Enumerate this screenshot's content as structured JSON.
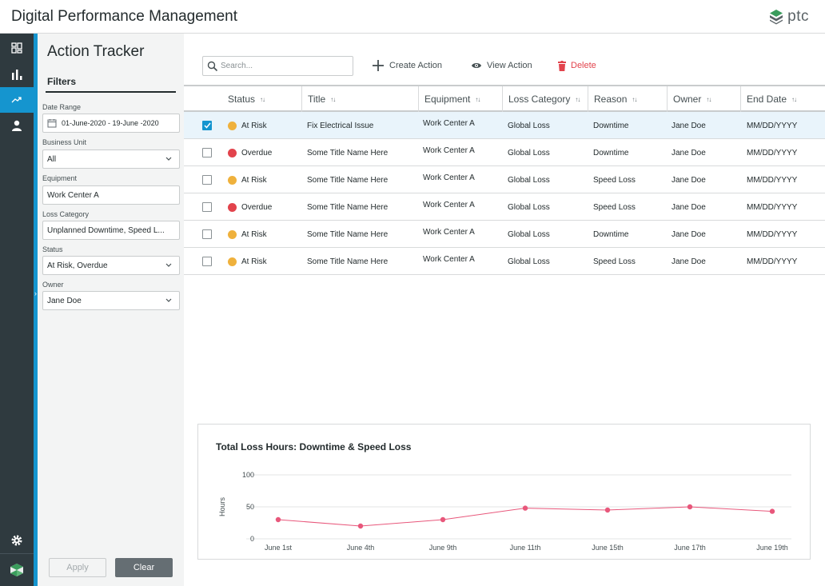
{
  "app": {
    "title": "Digital Performance Management",
    "logo_text": "ptc"
  },
  "nav": {
    "items": [
      {
        "name": "dashboard-icon",
        "active": false
      },
      {
        "name": "bar-chart-icon",
        "active": false
      },
      {
        "name": "trend-icon",
        "active": true
      },
      {
        "name": "person-icon",
        "active": false
      }
    ],
    "bottom": [
      "gear-icon",
      "cube-logo-icon"
    ]
  },
  "panel": {
    "title": "Action Tracker",
    "tab": "Filters",
    "filters": [
      {
        "label": "Date Range",
        "value": "01-June-2020 - 19-June -2020",
        "type": "date"
      },
      {
        "label": "Business Unit",
        "value": "All",
        "type": "select"
      },
      {
        "label": "Equipment",
        "value": "Work Center A",
        "type": "text"
      },
      {
        "label": "Loss Category",
        "value": "Unplanned Downtime, Speed L...",
        "type": "text"
      },
      {
        "label": "Status",
        "value": "At Risk, Overdue",
        "type": "select"
      },
      {
        "label": "Owner",
        "value": "Jane Doe",
        "type": "select"
      }
    ],
    "apply_label": "Apply",
    "clear_label": "Clear"
  },
  "toolbar": {
    "search_placeholder": "Search...",
    "create_label": "Create Action",
    "view_label": "View Action",
    "delete_label": "Delete"
  },
  "colors": {
    "accent": "#1595cf",
    "at_risk": "#efb13c",
    "overdue": "#e2434c",
    "line": "#e8577b",
    "delete": "#e2434c"
  },
  "table": {
    "columns": [
      "Status",
      "Title",
      "Equipment",
      "Loss Category",
      "Reason",
      "Owner",
      "End Date"
    ],
    "rows": [
      {
        "selected": true,
        "status": "At Risk",
        "title": "Fix Electrical Issue",
        "equipment": "Work Center A",
        "loss_category": "Global Loss",
        "reason": "Downtime",
        "owner": "Jane Doe",
        "end_date": "MM/DD/YYYY"
      },
      {
        "selected": false,
        "status": "Overdue",
        "title": "Some Title Name Here",
        "equipment": "Work Center A",
        "loss_category": "Global Loss",
        "reason": "Downtime",
        "owner": "Jane Doe",
        "end_date": "MM/DD/YYYY"
      },
      {
        "selected": false,
        "status": "At Risk",
        "title": "Some Title Name Here",
        "equipment": "Work Center A",
        "loss_category": "Global Loss",
        "reason": "Speed Loss",
        "owner": "Jane Doe",
        "end_date": "MM/DD/YYYY"
      },
      {
        "selected": false,
        "status": "Overdue",
        "title": "Some Title Name Here",
        "equipment": "Work Center A",
        "loss_category": "Global Loss",
        "reason": "Speed Loss",
        "owner": "Jane Doe",
        "end_date": "MM/DD/YYYY"
      },
      {
        "selected": false,
        "status": "At Risk",
        "title": "Some Title Name Here",
        "equipment": "Work Center A",
        "loss_category": "Global Loss",
        "reason": "Downtime",
        "owner": "Jane Doe",
        "end_date": "MM/DD/YYYY"
      },
      {
        "selected": false,
        "status": "At Risk",
        "title": "Some Title Name Here",
        "equipment": "Work Center A",
        "loss_category": "Global Loss",
        "reason": "Speed Loss",
        "owner": "Jane Doe",
        "end_date": "MM/DD/YYYY"
      }
    ]
  },
  "chart_data": {
    "type": "line",
    "title": "Total Loss Hours: Downtime & Speed Loss",
    "xlabel": "",
    "ylabel": "Hours",
    "categories": [
      "June 1st",
      "June 4th",
      "June 9th",
      "June 11th",
      "June 15th",
      "June 17th",
      "June 19th"
    ],
    "series": [
      {
        "values": [
          30,
          20,
          30,
          48,
          45,
          50,
          43
        ]
      }
    ],
    "ylim": [
      0,
      100
    ],
    "yticks": [
      0,
      50,
      100
    ],
    "grid": true,
    "legend": "none"
  }
}
